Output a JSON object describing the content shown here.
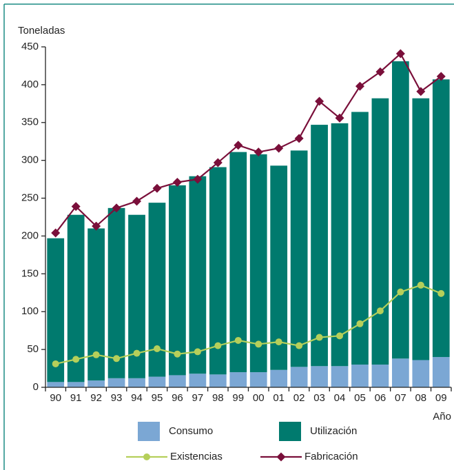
{
  "chart_data": {
    "type": "bar",
    "y_label": "Toneladas",
    "x_label": "Año",
    "categories": [
      "90",
      "91",
      "92",
      "93",
      "94",
      "95",
      "96",
      "97",
      "98",
      "99",
      "00",
      "01",
      "02",
      "03",
      "04",
      "05",
      "06",
      "07",
      "08",
      "09"
    ],
    "series": [
      {
        "name": "Consumo",
        "type": "bar",
        "color": "#7ba7d4",
        "values": [
          7,
          7,
          9,
          12,
          12,
          14,
          16,
          18,
          17,
          20,
          20,
          23,
          27,
          28,
          28,
          30,
          30,
          38,
          36,
          40
        ]
      },
      {
        "name": "Utilización",
        "type": "bar",
        "color": "#007a6e",
        "values": [
          190,
          221,
          201,
          225,
          216,
          230,
          251,
          261,
          274,
          291,
          288,
          270,
          286,
          319,
          321,
          334,
          352,
          393,
          346,
          367
        ]
      },
      {
        "name": "Existencias",
        "type": "line",
        "marker": "circle",
        "color": "#b5cf5a",
        "values": [
          31,
          37,
          43,
          38,
          45,
          51,
          44,
          47,
          55,
          62,
          57,
          60,
          55,
          66,
          68,
          84,
          101,
          126,
          135,
          124
        ]
      },
      {
        "name": "Fabricación",
        "type": "line",
        "marker": "diamond",
        "color": "#7a0f3a",
        "values": [
          204,
          239,
          213,
          237,
          246,
          263,
          271,
          275,
          297,
          320,
          311,
          316,
          329,
          378,
          356,
          398,
          417,
          441,
          391,
          411
        ]
      }
    ],
    "stacked": true,
    "ylim": [
      0,
      450
    ],
    "yticks": [
      0,
      50,
      100,
      150,
      200,
      250,
      300,
      350,
      400,
      450
    ]
  }
}
